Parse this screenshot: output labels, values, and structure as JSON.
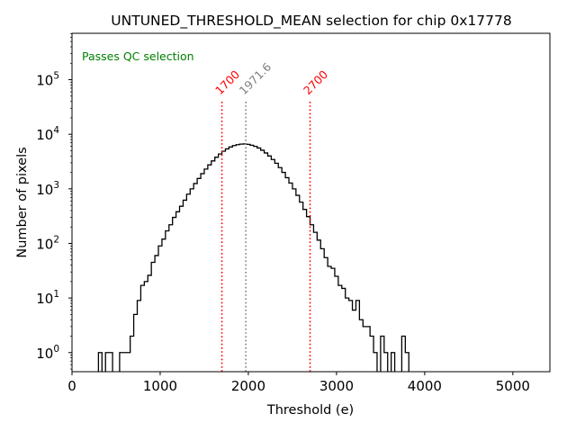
{
  "chart_data": {
    "type": "histogram",
    "title": "UNTUNED_THRESHOLD_MEAN selection for chip 0x17778",
    "xlabel": "Threshold (e)",
    "ylabel": "Number of pixels",
    "xlim": [
      0,
      5420
    ],
    "ylim_log10": [
      -0.35,
      5.85
    ],
    "yscale": "log",
    "x_ticks": [
      0,
      1000,
      2000,
      3000,
      4000,
      5000
    ],
    "x_tick_labels": [
      "0",
      "1000",
      "2000",
      "3000",
      "4000",
      "5000"
    ],
    "y_ticks_exponents": [
      0,
      1,
      2,
      3,
      4,
      5
    ],
    "y_tick_base": "10",
    "status_text": "Passes QC selection",
    "status_color": "#008000",
    "bin_start": 300,
    "bin_width": 40,
    "counts": [
      1,
      0,
      1,
      1,
      0,
      0,
      1,
      1,
      1,
      2,
      5,
      9,
      17,
      20,
      26,
      45,
      60,
      90,
      120,
      170,
      220,
      300,
      380,
      480,
      620,
      800,
      1000,
      1250,
      1550,
      1900,
      2300,
      2750,
      3250,
      3800,
      4350,
      4900,
      5400,
      5850,
      6200,
      6450,
      6600,
      6650,
      6550,
      6300,
      6000,
      5600,
      5100,
      4550,
      4000,
      3450,
      2950,
      2450,
      2000,
      1600,
      1280,
      1000,
      760,
      570,
      420,
      310,
      220,
      160,
      115,
      80,
      55,
      38,
      35,
      25,
      17,
      15,
      10,
      9,
      6,
      9,
      4,
      3,
      3,
      2,
      1,
      0,
      2,
      1,
      0,
      1,
      0,
      0,
      2,
      1,
      0
    ],
    "vlines": [
      {
        "x": 1700,
        "label": "1700",
        "color": "#ff0000",
        "style": "dotted"
      },
      {
        "x": 1971.6,
        "label": "1971.6",
        "color": "#808080",
        "style": "dotted"
      },
      {
        "x": 2700,
        "label": "2700",
        "color": "#ff0000",
        "style": "dotted"
      }
    ],
    "grid": false,
    "line_color": "#000000"
  }
}
